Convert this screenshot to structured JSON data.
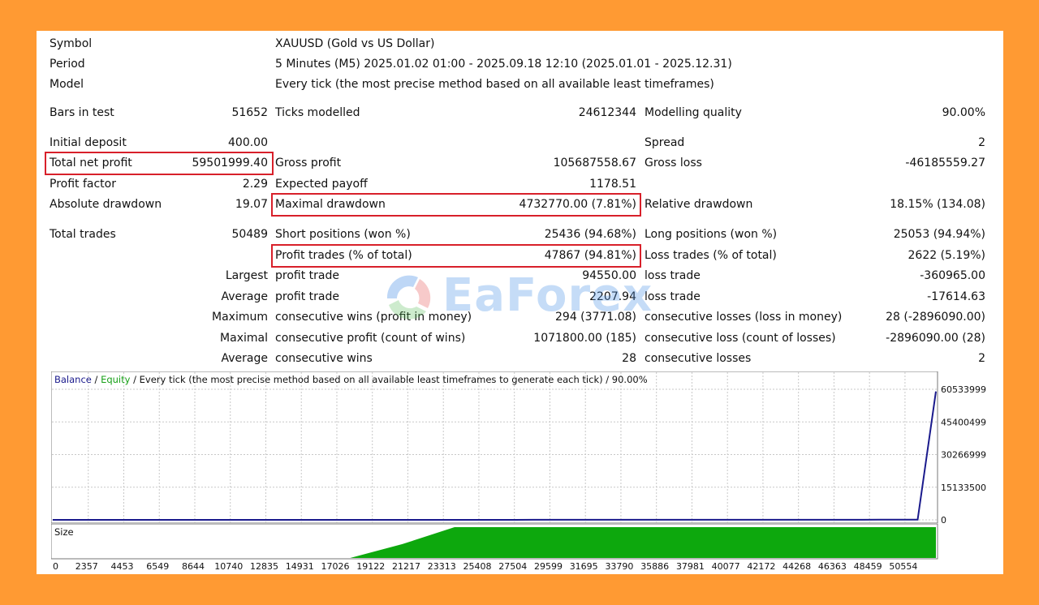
{
  "report": {
    "symbol": {
      "label": "Symbol",
      "value": "XAUUSD (Gold vs US Dollar)"
    },
    "period": {
      "label": "Period",
      "value": "5 Minutes (M5) 2025.01.02 01:00 - 2025.09.18 12:10 (2025.01.01 - 2025.12.31)"
    },
    "model": {
      "label": "Model",
      "value": "Every tick (the most precise method based on all available least timeframes)"
    },
    "bars_in_test": {
      "label": "Bars in test",
      "value": "51652"
    },
    "ticks_modelled": {
      "label": "Ticks modelled",
      "value": "24612344"
    },
    "modelling_quality": {
      "label": "Modelling quality",
      "value": "90.00%"
    },
    "initial_deposit": {
      "label": "Initial deposit",
      "value": "400.00"
    },
    "spread": {
      "label": "Spread",
      "value": "2"
    },
    "total_net_profit": {
      "label": "Total net profit",
      "value": "59501999.40"
    },
    "gross_profit": {
      "label": "Gross profit",
      "value": "105687558.67"
    },
    "gross_loss": {
      "label": "Gross loss",
      "value": "-46185559.27"
    },
    "profit_factor": {
      "label": "Profit factor",
      "value": "2.29"
    },
    "expected_payoff": {
      "label": "Expected payoff",
      "value": "1178.51"
    },
    "absolute_drawdown": {
      "label": "Absolute drawdown",
      "value": "19.07"
    },
    "maximal_drawdown": {
      "label": "Maximal drawdown",
      "value": "4732770.00 (7.81%)"
    },
    "relative_drawdown": {
      "label": "Relative drawdown",
      "value": "18.15% (134.08)"
    },
    "total_trades": {
      "label": "Total trades",
      "value": "50489"
    },
    "short_positions": {
      "label": "Short positions (won %)",
      "value": "25436 (94.68%)"
    },
    "long_positions": {
      "label": "Long positions (won %)",
      "value": "25053 (94.94%)"
    },
    "profit_trades": {
      "label": "Profit trades (% of total)",
      "value": "47867 (94.81%)"
    },
    "loss_trades": {
      "label": "Loss trades (% of total)",
      "value": "2622 (5.19%)"
    },
    "largest": {
      "prefix": "Largest",
      "profit_label": "profit trade",
      "profit_value": "94550.00",
      "loss_label": "loss trade",
      "loss_value": "-360965.00"
    },
    "average": {
      "prefix": "Average",
      "profit_label": "profit trade",
      "profit_value": "2207.94",
      "loss_label": "loss trade",
      "loss_value": "-17614.63"
    },
    "maximum": {
      "prefix": "Maximum",
      "profit_label": "consecutive wins (profit in money)",
      "profit_value": "294 (3771.08)",
      "loss_label": "consecutive losses (loss in money)",
      "loss_value": "28 (-2896090.00)"
    },
    "maximal": {
      "prefix": "Maximal",
      "profit_label": "consecutive profit (count of wins)",
      "profit_value": "1071800.00 (185)",
      "loss_label": "consecutive loss (count of losses)",
      "loss_value": "-2896090.00 (28)"
    },
    "average2": {
      "prefix": "Average",
      "profit_label": "consecutive wins",
      "profit_value": "28",
      "loss_label": "consecutive losses",
      "loss_value": "2"
    }
  },
  "watermark": {
    "text": "EaForex"
  },
  "chart_data": {
    "type": "line",
    "title_balance": "Balance",
    "title_sep1": " / ",
    "title_equity": "Equity",
    "title_rest": " / Every tick (the most precise method based on all available least timeframes to generate each tick) / 90.00%",
    "x_ticks": [
      "0",
      "2357",
      "4453",
      "6549",
      "8644",
      "10740",
      "12835",
      "14931",
      "17026",
      "19122",
      "21217",
      "23313",
      "25408",
      "27504",
      "29599",
      "31695",
      "33790",
      "35886",
      "37981",
      "40077",
      "42172",
      "44268",
      "46363",
      "48459",
      "50554"
    ],
    "y_ticks": [
      "60533999",
      "45400499",
      "30266999",
      "15133500",
      "0"
    ],
    "ylim": [
      0,
      60533999
    ],
    "xlim": [
      0,
      50554
    ],
    "grid": true,
    "series": [
      {
        "name": "Balance",
        "color": "#1a1a8c",
        "x": [
          0,
          6549,
          12835,
          17026,
          19122,
          20170,
          21217,
          22265,
          23313,
          24361,
          25408,
          26456,
          27504,
          28552,
          29599,
          30647,
          31695,
          32743,
          33790,
          34838,
          35886,
          36933,
          37981,
          39029,
          40077,
          41125,
          42172,
          43220,
          44268,
          45315,
          46363,
          47411,
          48459,
          49507,
          50554
        ],
        "y": [
          400,
          600,
          1000,
          1500,
          2500,
          3800,
          5600,
          7500,
          10500,
          13500,
          15800,
          18200,
          21200,
          23100,
          22000,
          23200,
          24500,
          26500,
          29000,
          30800,
          33500,
          35500,
          37800,
          40200,
          42500,
          44600,
          46200,
          48700,
          50800,
          52500,
          54500,
          56800,
          58800,
          59400,
          59501999
        ]
      }
    ],
    "size_label": "Size",
    "size_color": "#0da80d",
    "size_series": {
      "x_start": 17026,
      "x_full": 23000,
      "x_end": 50554,
      "level": 0.95
    }
  }
}
